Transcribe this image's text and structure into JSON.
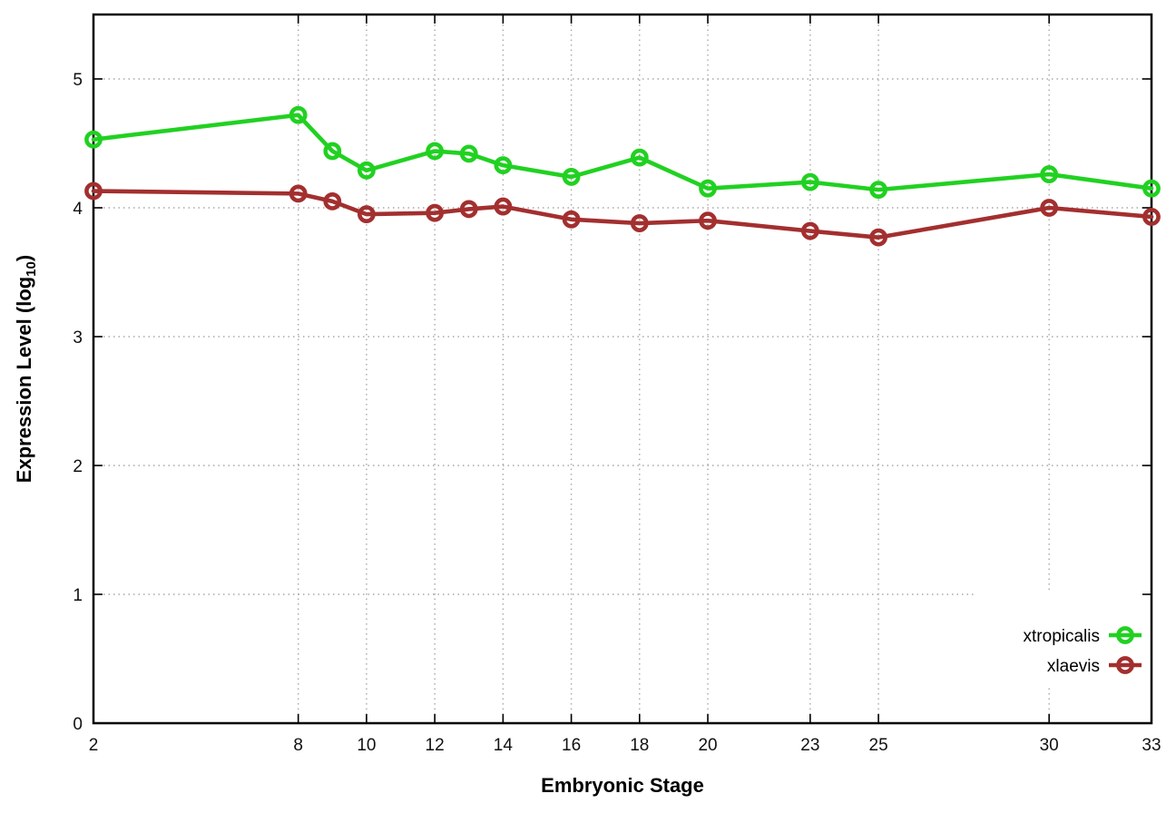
{
  "page": {
    "background": "#ffffff"
  },
  "chart_data": {
    "type": "line",
    "title": "",
    "xlabel": "Embryonic Stage",
    "ylabel": {
      "text": "Expression Level (log10)",
      "main": "Expression Level (log",
      "sub": "10",
      "tail": ")"
    },
    "xlim": [
      2,
      33
    ],
    "ylim": [
      0,
      5.5
    ],
    "x_ticks": [
      2,
      8,
      10,
      12,
      14,
      16,
      18,
      20,
      23,
      25,
      30,
      33
    ],
    "y_ticks": [
      0,
      1,
      2,
      3,
      4,
      5
    ],
    "grid": true,
    "grid_style": "dotted",
    "legend": {
      "position": "inside bottom right",
      "entries": [
        "xtropicalis",
        "xlaevis"
      ]
    },
    "x": [
      2,
      8,
      9,
      10,
      12,
      13,
      14,
      16,
      18,
      20,
      23,
      25,
      30,
      33
    ],
    "series": [
      {
        "name": "xtropicalis",
        "color": "#21d121",
        "marker": "open-circle",
        "values": [
          4.53,
          4.72,
          4.44,
          4.29,
          4.44,
          4.42,
          4.33,
          4.24,
          4.39,
          4.15,
          4.2,
          4.14,
          4.26,
          4.15
        ]
      },
      {
        "name": "xlaevis",
        "color": "#a32f2f",
        "marker": "open-circle",
        "values": [
          4.13,
          4.11,
          4.05,
          3.95,
          3.96,
          3.99,
          4.01,
          3.91,
          3.88,
          3.9,
          3.82,
          3.77,
          4.0,
          3.93
        ]
      }
    ],
    "colors": {
      "grid": "#a8a8a8",
      "axis": "#000000",
      "tick_text": "#111111",
      "title_text": "#000000"
    }
  }
}
